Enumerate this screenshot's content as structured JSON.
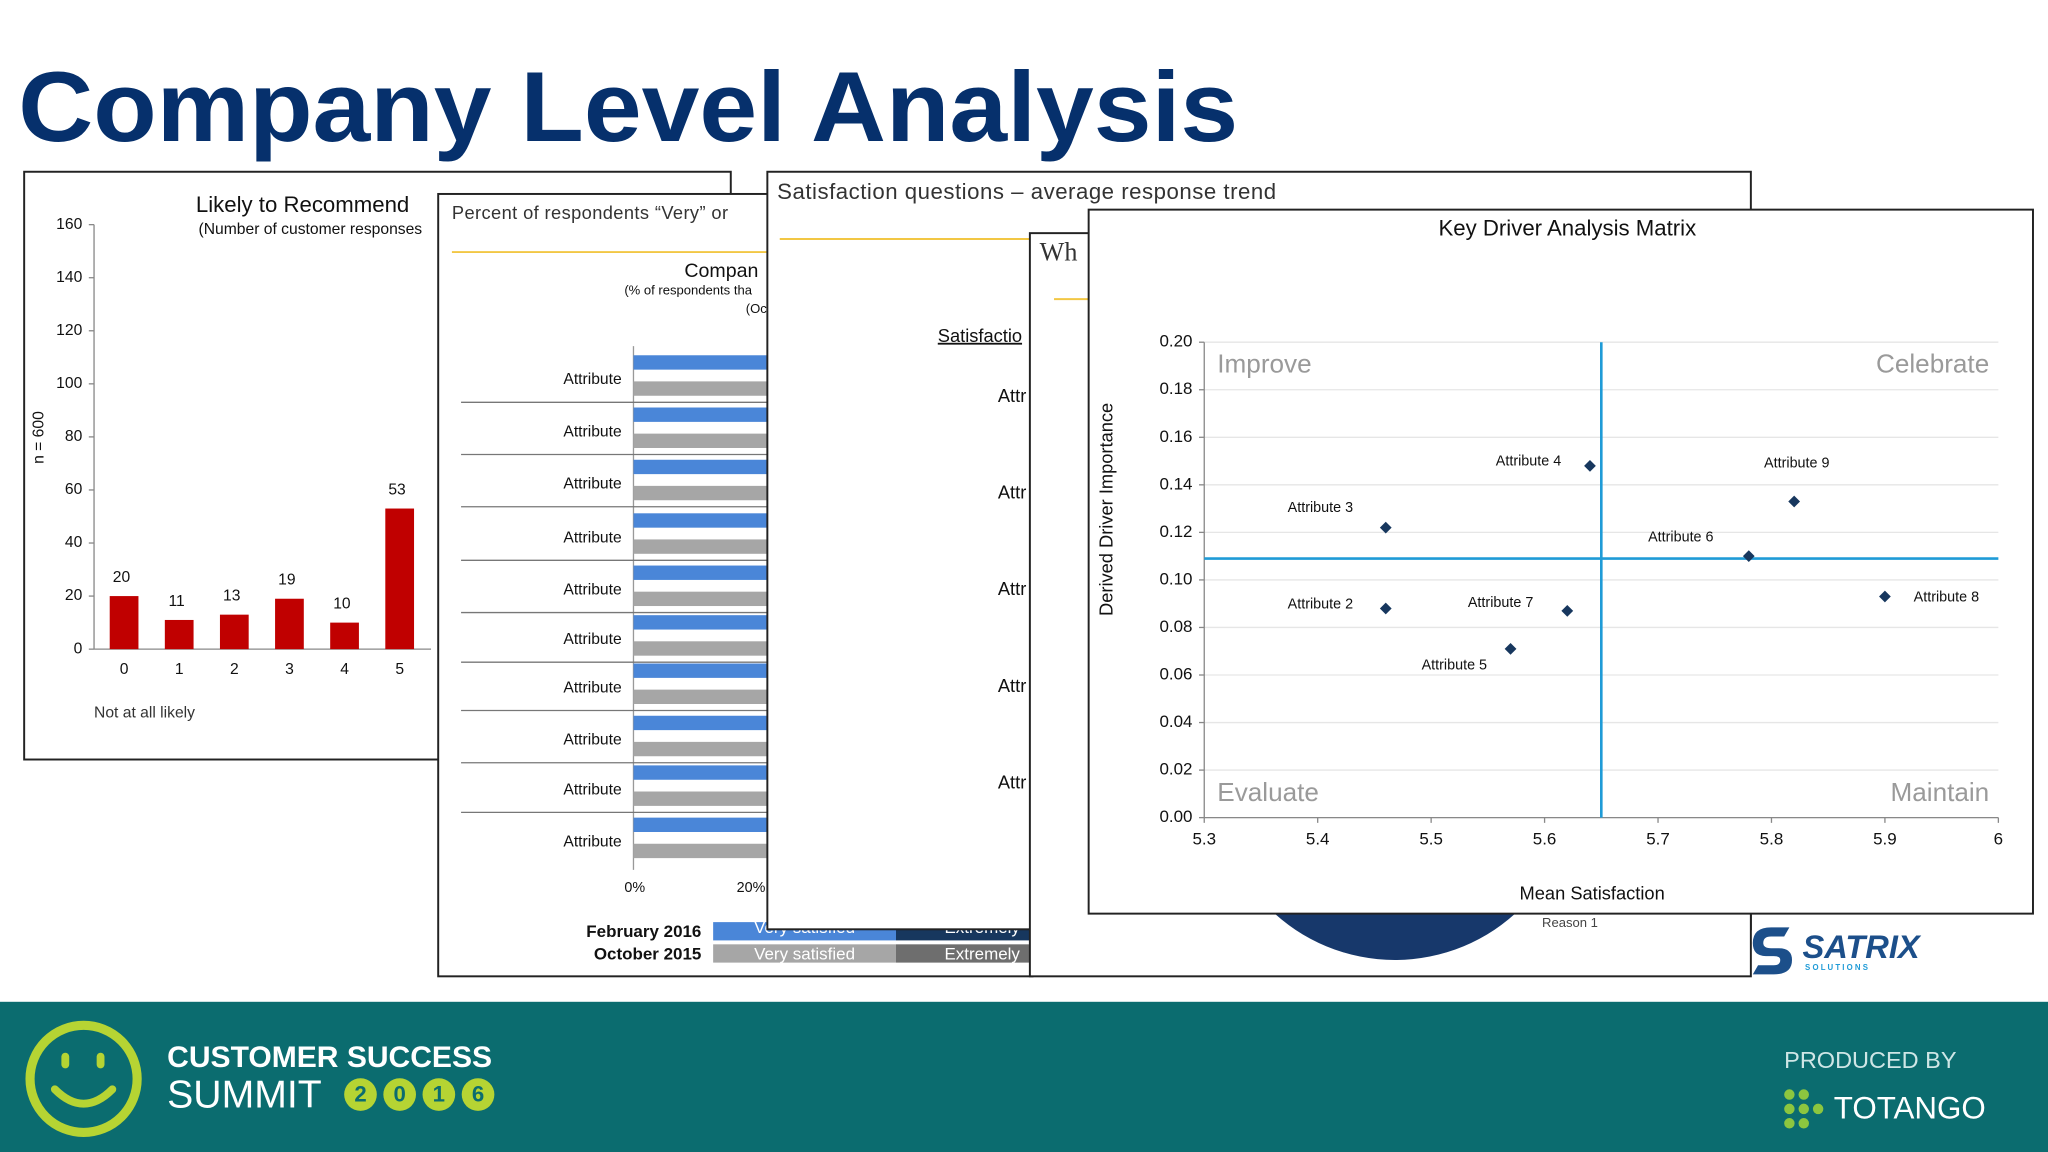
{
  "title": "Company Level Analysis",
  "chart_data": [
    {
      "type": "bar",
      "title": "Likely to Recommend",
      "subtitle": "(Number of customer responses",
      "y_label": "n = 600",
      "annotation": "Not at all likely",
      "categories": [
        "0",
        "1",
        "2",
        "3",
        "4",
        "5"
      ],
      "values": [
        20,
        11,
        13,
        19,
        10,
        53
      ],
      "color": "#c00000",
      "ylim": [
        0,
        160
      ],
      "yticks": [
        0,
        20,
        40,
        60,
        80,
        100,
        120,
        140,
        160
      ]
    },
    {
      "type": "scatter",
      "title": "Key Driver Analysis Matrix",
      "x_label": "Mean Satisfaction",
      "y_label": "Derived Driver Importance",
      "point_labels": [
        "Attribute 4",
        "Attribute 9",
        "Attribute 3",
        "Attribute 6",
        "Attribute 2",
        "Attribute 7",
        "Attribute 8",
        "Attribute 5"
      ],
      "x": [
        5.64,
        5.82,
        5.46,
        5.78,
        5.46,
        5.62,
        5.9,
        5.57
      ],
      "y": [
        0.148,
        0.133,
        0.122,
        0.11,
        0.088,
        0.087,
        0.093,
        0.071
      ],
      "color": "#17375e",
      "xlim": [
        5.3,
        6
      ],
      "xticks": [
        5.3,
        5.4,
        5.5,
        5.6,
        5.7,
        5.8,
        5.9,
        6
      ],
      "ylim": [
        0,
        0.2
      ],
      "yticks": [
        {
          "value": 0,
          "label": "0.00"
        },
        {
          "value": 0.02,
          "label": "0.02"
        },
        {
          "value": 0.04,
          "label": "0.04"
        },
        {
          "value": 0.06,
          "label": "0.06"
        },
        {
          "value": 0.08,
          "label": "0.08"
        },
        {
          "value": 0.1,
          "label": "0.10"
        },
        {
          "value": 0.12,
          "label": "0.12"
        },
        {
          "value": 0.14,
          "label": "0.14"
        },
        {
          "value": 0.16,
          "label": "0.16"
        },
        {
          "value": 0.18,
          "label": "0.18"
        },
        {
          "value": 0.2,
          "label": "0.20"
        }
      ],
      "ref_x": 5.65,
      "ref_y": 0.109,
      "ref_color": "#1f9bd7",
      "quadrants": [
        "Improve",
        "Celebrate",
        "Evaluate",
        "Maintain"
      ],
      "grid": true
    }
  ],
  "percent_card": {
    "title": "Percent of respondents “Very” or",
    "heading": "Compan",
    "note": "(% of respondents tha",
    "note2": "(Oc",
    "rows": [
      "Attribute",
      "Attribute",
      "Attribute",
      "Attribute",
      "Attribute",
      "Attribute",
      "Attribute",
      "Attribute",
      "Attribute",
      "Attribute"
    ],
    "axis_labels": [
      "0%",
      "20%"
    ],
    "legend_rows": [
      "February 2016",
      "October 2015"
    ],
    "legend_boxes": [
      "Very satisfied",
      "Extremely",
      "Very satisfied",
      "Extremely"
    ]
  },
  "trend_card": {
    "title": "Satisfaction questions – average response trend",
    "heading": "Satisfactio",
    "rows": [
      "Attr",
      "Attr",
      "Attr",
      "Attr",
      "Attr"
    ]
  },
  "reason_card": {
    "title": "Wh",
    "label": "Reason 1"
  },
  "logo": {
    "name": "SATRIX",
    "tag": "S O L U T I O N S"
  },
  "footer": {
    "line1": "CUSTOMER SUCCESS",
    "line2": "SUMMIT",
    "year_digits": [
      "2",
      "0",
      "1",
      "6"
    ],
    "produced_by": "PRODUCED BY",
    "producer": "TOTANGO"
  }
}
